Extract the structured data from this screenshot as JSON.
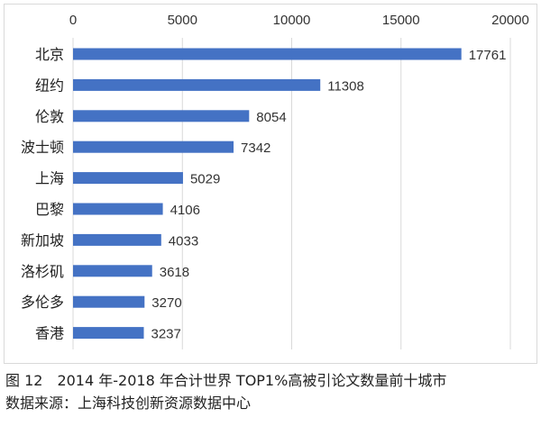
{
  "chart_data": {
    "type": "bar",
    "orientation": "horizontal",
    "categories": [
      "北京",
      "纽约",
      "伦敦",
      "波士顿",
      "上海",
      "巴黎",
      "新加坡",
      "洛杉矶",
      "多伦多",
      "香港"
    ],
    "values": [
      17761,
      11308,
      8054,
      7342,
      5029,
      4106,
      4033,
      3618,
      3270,
      3237
    ],
    "xlim": [
      0,
      20000
    ],
    "ticks": [
      "0",
      "5000",
      "10000",
      "15000",
      "20000"
    ],
    "tick_values": [
      0,
      5000,
      10000,
      15000,
      20000
    ],
    "x_axis_position": "top",
    "grid": true,
    "bar_color": "#4472C4",
    "data_labels": true
  },
  "caption": {
    "title": "图 12　2014 年-2018 年合计世界 TOP1%高被引论文数量前十城市",
    "source": "数据来源：上海科技创新资源数据中心"
  }
}
